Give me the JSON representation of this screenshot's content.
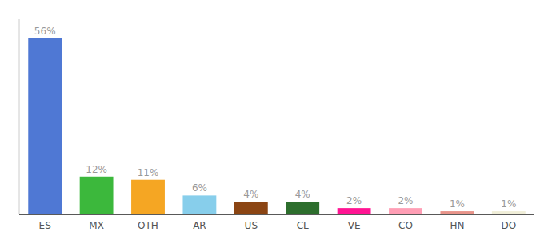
{
  "chart_data": {
    "type": "bar",
    "categories": [
      "ES",
      "MX",
      "OTH",
      "AR",
      "US",
      "CL",
      "VE",
      "CO",
      "HN",
      "DO"
    ],
    "values": [
      56,
      12,
      11,
      6,
      4,
      4,
      2,
      2,
      1,
      1
    ],
    "value_labels": [
      "56%",
      "12%",
      "11%",
      "6%",
      "4%",
      "4%",
      "2%",
      "2%",
      "1%",
      "1%"
    ],
    "colors": [
      "#4f78d4",
      "#3cb83c",
      "#f5a623",
      "#87ceeb",
      "#8b4513",
      "#2d6e2d",
      "#ff1493",
      "#ff9eb5",
      "#e8948a",
      "#f0eed8"
    ],
    "ylim": [
      0,
      62
    ],
    "data_labels": true,
    "tick_labels": "x",
    "grid": false
  }
}
